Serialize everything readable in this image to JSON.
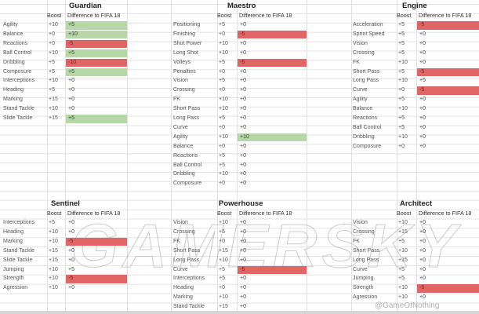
{
  "header_label": {
    "boost": "Boost",
    "diff": "Difference to FIFA 18"
  },
  "colors": {
    "negative": "#e06666",
    "positive": "#b6d7a8",
    "grid": "#e3e3e3"
  },
  "sections": [
    {
      "title": "Guardian",
      "rows": [
        {
          "attr": "Agility",
          "boost": "+10",
          "diff": "+5",
          "tone": "pos"
        },
        {
          "attr": "Balance",
          "boost": "+0",
          "diff": "+10",
          "tone": "pos"
        },
        {
          "attr": "Reactions",
          "boost": "+0",
          "diff": "-5",
          "tone": "neg"
        },
        {
          "attr": "Ball Control",
          "boost": "+10",
          "diff": "+5",
          "tone": "pos"
        },
        {
          "attr": "Dribbling",
          "boost": "+5",
          "diff": "-10",
          "tone": "neg"
        },
        {
          "attr": "Composure",
          "boost": "+5",
          "diff": "+5",
          "tone": "pos"
        },
        {
          "attr": "Interceptions",
          "boost": "+10",
          "diff": "+0",
          "tone": ""
        },
        {
          "attr": "Heading",
          "boost": "+5",
          "diff": "+0",
          "tone": ""
        },
        {
          "attr": "Marking",
          "boost": "+15",
          "diff": "+0",
          "tone": ""
        },
        {
          "attr": "Stand Tackle",
          "boost": "+10",
          "diff": "+0",
          "tone": ""
        },
        {
          "attr": "Slide Tackle",
          "boost": "+15",
          "diff": "+5",
          "tone": "pos"
        }
      ]
    },
    {
      "title": "Maestro",
      "rows": [
        {
          "attr": "Positioning",
          "boost": "+5",
          "diff": "+0",
          "tone": ""
        },
        {
          "attr": "Finishing",
          "boost": "+0",
          "diff": "-5",
          "tone": "neg"
        },
        {
          "attr": "Shot Power",
          "boost": "+10",
          "diff": "+0",
          "tone": ""
        },
        {
          "attr": "Long Shot",
          "boost": "+10",
          "diff": "+0",
          "tone": ""
        },
        {
          "attr": "Volleys",
          "boost": "+5",
          "diff": "-5",
          "tone": "neg"
        },
        {
          "attr": "Penalties",
          "boost": "+0",
          "diff": "+0",
          "tone": ""
        },
        {
          "attr": "Vision",
          "boost": "+5",
          "diff": "+0",
          "tone": ""
        },
        {
          "attr": "Crossing",
          "boost": "+0",
          "diff": "+0",
          "tone": ""
        },
        {
          "attr": "FK",
          "boost": "+10",
          "diff": "+0",
          "tone": ""
        },
        {
          "attr": "Short Pass",
          "boost": "+10",
          "diff": "+0",
          "tone": ""
        },
        {
          "attr": "Long Pass",
          "boost": "+5",
          "diff": "+0",
          "tone": ""
        },
        {
          "attr": "Curve",
          "boost": "+0",
          "diff": "+0",
          "tone": ""
        },
        {
          "attr": "Agility",
          "boost": "+10",
          "diff": "+10",
          "tone": "pos"
        },
        {
          "attr": "Balance",
          "boost": "+0",
          "diff": "+0",
          "tone": ""
        },
        {
          "attr": "Reactions",
          "boost": "+5",
          "diff": "+0",
          "tone": ""
        },
        {
          "attr": "Ball Control",
          "boost": "+5",
          "diff": "+0",
          "tone": ""
        },
        {
          "attr": "Dribbling",
          "boost": "+10",
          "diff": "+0",
          "tone": ""
        },
        {
          "attr": "Composure",
          "boost": "+0",
          "diff": "+0",
          "tone": ""
        }
      ]
    },
    {
      "title": "Engine",
      "rows": [
        {
          "attr": "Acceleration",
          "boost": "+5",
          "diff": "-5",
          "tone": "neg"
        },
        {
          "attr": "Sprint Speed",
          "boost": "+5",
          "diff": "+0",
          "tone": ""
        },
        {
          "attr": "Vision",
          "boost": "+5",
          "diff": "+0",
          "tone": ""
        },
        {
          "attr": "Crossing",
          "boost": "+5",
          "diff": "+0",
          "tone": ""
        },
        {
          "attr": "FK",
          "boost": "+10",
          "diff": "+0",
          "tone": ""
        },
        {
          "attr": "Short Pass",
          "boost": "+5",
          "diff": "-5",
          "tone": "neg"
        },
        {
          "attr": "Long Pass",
          "boost": "+10",
          "diff": "+5",
          "tone": ""
        },
        {
          "attr": "Curve",
          "boost": "+0",
          "diff": "-5",
          "tone": "neg"
        },
        {
          "attr": "Agility",
          "boost": "+5",
          "diff": "+0",
          "tone": ""
        },
        {
          "attr": "Balance",
          "boost": "+10",
          "diff": "+0",
          "tone": ""
        },
        {
          "attr": "Reactions",
          "boost": "+5",
          "diff": "+0",
          "tone": ""
        },
        {
          "attr": "Ball Control",
          "boost": "+5",
          "diff": "+0",
          "tone": ""
        },
        {
          "attr": "Dribbling",
          "boost": "+10",
          "diff": "+0",
          "tone": ""
        },
        {
          "attr": "Composure",
          "boost": "+0",
          "diff": "+0",
          "tone": ""
        }
      ]
    },
    {
      "title": "Sentinel",
      "rows": [
        {
          "attr": "Interceptions",
          "boost": "+5",
          "diff": "+0",
          "tone": ""
        },
        {
          "attr": "Heading",
          "boost": "+10",
          "diff": "+0",
          "tone": ""
        },
        {
          "attr": "Marking",
          "boost": "+10",
          "diff": "-5",
          "tone": "neg"
        },
        {
          "attr": "Stand Tackle",
          "boost": "+15",
          "diff": "+0",
          "tone": ""
        },
        {
          "attr": "Slide Tackle",
          "boost": "+15",
          "diff": "+0",
          "tone": ""
        },
        {
          "attr": "Jumping",
          "boost": "+10",
          "diff": "+5",
          "tone": ""
        },
        {
          "attr": "Strength",
          "boost": "+10",
          "diff": "-5",
          "tone": "neg"
        },
        {
          "attr": "Agression",
          "boost": "+10",
          "diff": "+0",
          "tone": ""
        }
      ]
    },
    {
      "title": "Powerhouse",
      "rows": [
        {
          "attr": "Vision",
          "boost": "+10",
          "diff": "+0",
          "tone": ""
        },
        {
          "attr": "Crossing",
          "boost": "+5",
          "diff": "+0",
          "tone": ""
        },
        {
          "attr": "FK",
          "boost": "+0",
          "diff": "+0",
          "tone": ""
        },
        {
          "attr": "Short Pass",
          "boost": "+15",
          "diff": "+0",
          "tone": ""
        },
        {
          "attr": "Long Pass",
          "boost": "+10",
          "diff": "+0",
          "tone": ""
        },
        {
          "attr": "Curve",
          "boost": "+5",
          "diff": "-5",
          "tone": "neg"
        },
        {
          "attr": "Interceptions",
          "boost": "+5",
          "diff": "+0",
          "tone": ""
        },
        {
          "attr": "Heading",
          "boost": "+0",
          "diff": "+0",
          "tone": ""
        },
        {
          "attr": "Marking",
          "boost": "+10",
          "diff": "+0",
          "tone": ""
        },
        {
          "attr": "Stand Tackle",
          "boost": "+15",
          "diff": "+0",
          "tone": ""
        }
      ]
    },
    {
      "title": "Architect",
      "rows": [
        {
          "attr": "Vision",
          "boost": "+10",
          "diff": "+0",
          "tone": ""
        },
        {
          "attr": "Crossing",
          "boost": "+15",
          "diff": "+0",
          "tone": ""
        },
        {
          "attr": "FK",
          "boost": "+5",
          "diff": "+0",
          "tone": ""
        },
        {
          "attr": "Short Pass",
          "boost": "+10",
          "diff": "+0",
          "tone": ""
        },
        {
          "attr": "Long Pass",
          "boost": "+15",
          "diff": "+0",
          "tone": ""
        },
        {
          "attr": "Curve",
          "boost": "+5",
          "diff": "+0",
          "tone": ""
        },
        {
          "attr": "Jumping",
          "boost": "+5",
          "diff": "+0",
          "tone": ""
        },
        {
          "attr": "Strength",
          "boost": "+10",
          "diff": "-5",
          "tone": "neg"
        },
        {
          "attr": "Agression",
          "boost": "+10",
          "diff": "+0",
          "tone": ""
        }
      ]
    }
  ],
  "watermark": "GAMERSKY",
  "credit": "@GameOfNothing"
}
